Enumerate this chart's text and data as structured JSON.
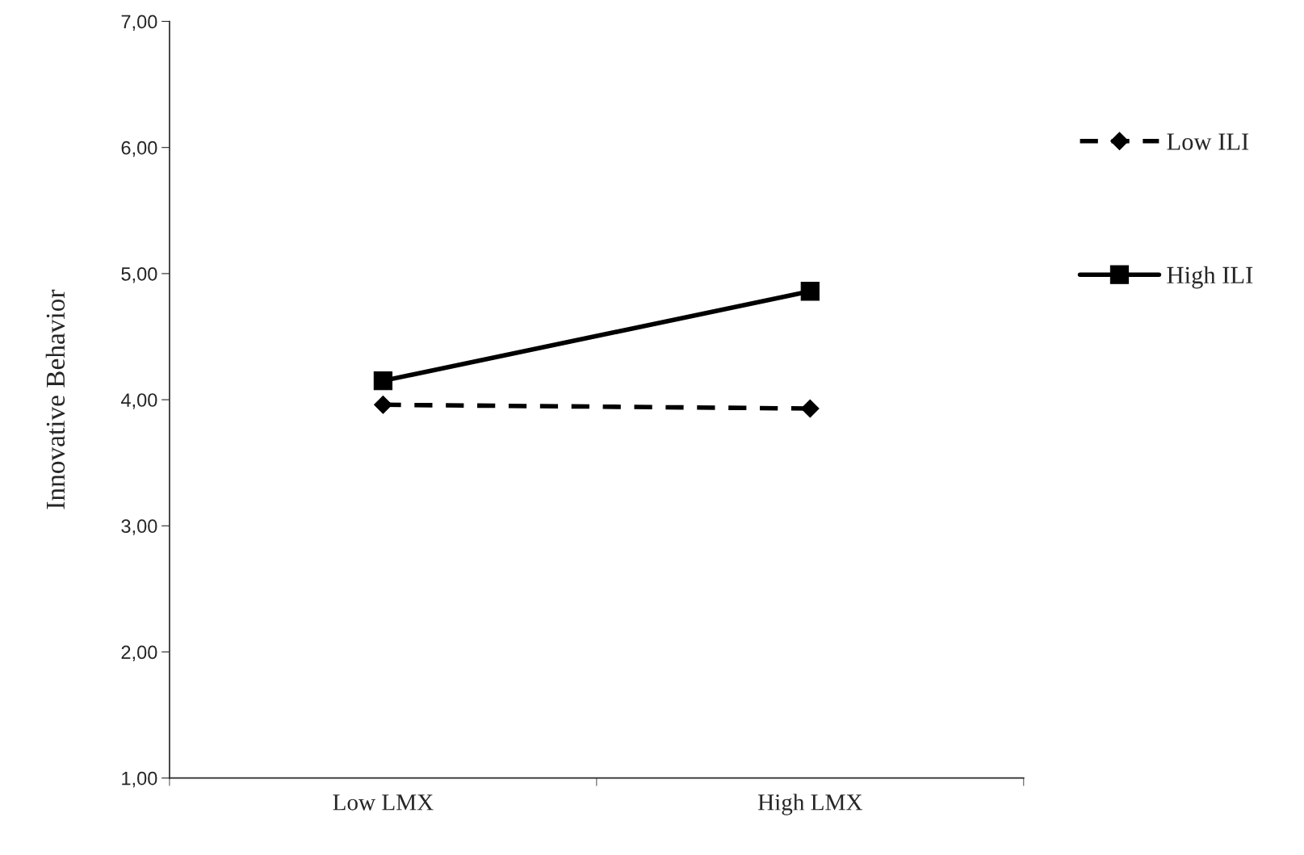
{
  "chart_data": {
    "type": "line",
    "ylabel": "Innovative Behavior",
    "categories": [
      "Low LMX",
      "High LMX"
    ],
    "series": [
      {
        "name": "Low ILI",
        "color": "#000000",
        "values": [
          3.96,
          3.93
        ],
        "line_style": "dashed",
        "marker": "diamond"
      },
      {
        "name": "High ILI",
        "color": "#000000",
        "values": [
          4.15,
          4.86
        ],
        "line_style": "solid",
        "marker": "square"
      }
    ],
    "ylim": [
      1,
      7
    ],
    "yticks": [
      {
        "value": 1,
        "label": "1,00"
      },
      {
        "value": 2,
        "label": "2,00"
      },
      {
        "value": 3,
        "label": "3,00"
      },
      {
        "value": 4,
        "label": "4,00"
      },
      {
        "value": 5,
        "label": "5,00"
      },
      {
        "value": 6,
        "label": "6,00"
      },
      {
        "value": 7,
        "label": "7,00"
      }
    ],
    "grid": false,
    "legend": "right"
  }
}
